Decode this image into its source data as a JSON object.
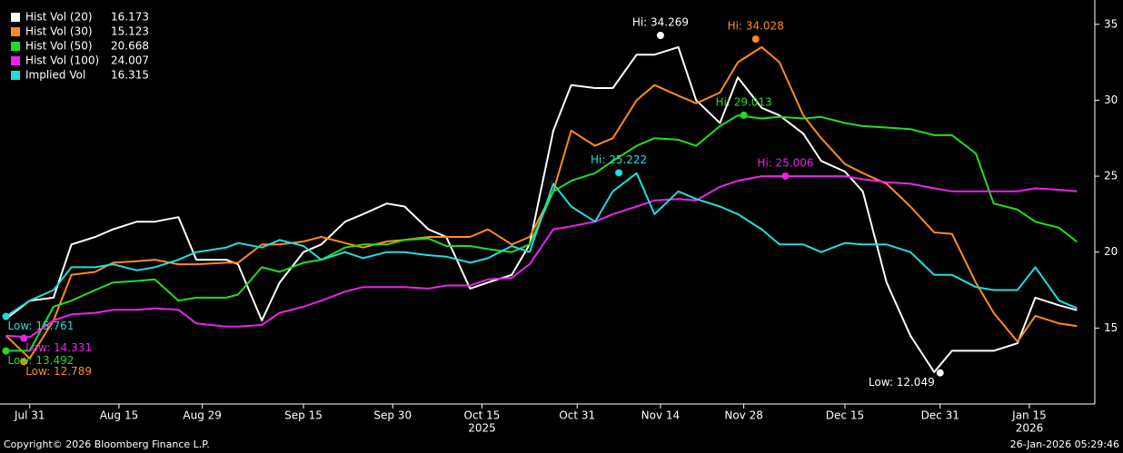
{
  "chart_data": {
    "type": "line",
    "xlim": [
      "2025-07-26",
      "2026-01-26"
    ],
    "ylim": [
      10,
      36.6
    ],
    "yticks": [
      15,
      20,
      25,
      30,
      35
    ],
    "xticks": [
      {
        "value": "2025-07-31",
        "label": "Jul 31"
      },
      {
        "value": "2025-08-15",
        "label": "Aug 15"
      },
      {
        "value": "2025-08-29",
        "label": "Aug 29"
      },
      {
        "value": "2025-09-15",
        "label": "Sep 15"
      },
      {
        "value": "2025-09-30",
        "label": "Sep 30"
      },
      {
        "value": "2025-10-15",
        "label": "Oct 15"
      },
      {
        "value": "2025-10-31",
        "label": "Oct 31"
      },
      {
        "value": "2025-11-14",
        "label": "Nov 14"
      },
      {
        "value": "2025-11-28",
        "label": "Nov 28"
      },
      {
        "value": "2025-12-15",
        "label": "Dec 15"
      },
      {
        "value": "2025-12-31",
        "label": "Dec 31"
      },
      {
        "value": "2026-01-15",
        "label": "Jan 15"
      }
    ],
    "year_labels": [
      {
        "value": "2025-10-15",
        "label": "2025"
      },
      {
        "value": "2026-01-15",
        "label": "2026"
      }
    ],
    "x": [
      "2025-07-27",
      "2025-07-31",
      "2025-08-04",
      "2025-08-07",
      "2025-08-11",
      "2025-08-14",
      "2025-08-18",
      "2025-08-21",
      "2025-08-25",
      "2025-08-28",
      "2025-09-02",
      "2025-09-04",
      "2025-09-08",
      "2025-09-11",
      "2025-09-15",
      "2025-09-18",
      "2025-09-22",
      "2025-09-25",
      "2025-09-29",
      "2025-10-02",
      "2025-10-06",
      "2025-10-09",
      "2025-10-13",
      "2025-10-16",
      "2025-10-20",
      "2025-10-23",
      "2025-10-27",
      "2025-10-30",
      "2025-11-03",
      "2025-11-06",
      "2025-11-10",
      "2025-11-13",
      "2025-11-17",
      "2025-11-20",
      "2025-11-24",
      "2025-11-27",
      "2025-12-01",
      "2025-12-04",
      "2025-12-08",
      "2025-12-11",
      "2025-12-15",
      "2025-12-18",
      "2025-12-22",
      "2025-12-26",
      "2025-12-30",
      "2026-01-02",
      "2026-01-06",
      "2026-01-09",
      "2026-01-13",
      "2026-01-16",
      "2026-01-20",
      "2026-01-23"
    ],
    "series": [
      {
        "name": "Hist Vol (20)",
        "color": "#ffffff",
        "last_value": 16.173,
        "values": [
          15.6,
          16.8,
          17,
          20.5,
          21,
          21.5,
          22,
          22,
          22.3,
          19.5,
          19.5,
          19.2,
          15.5,
          18,
          20,
          20.5,
          22,
          22.5,
          23.2,
          23,
          21.5,
          21,
          17.6,
          18,
          18.5,
          20.5,
          28,
          31,
          30.8,
          30.8,
          33,
          33,
          33.5,
          30,
          28.5,
          31.5,
          29.5,
          29,
          27.8,
          26,
          25.3,
          24,
          18,
          14.5,
          12.1,
          13.5,
          13.5,
          13.5,
          14,
          17,
          16.5,
          16.173
        ]
      },
      {
        "name": "Hist Vol (30)",
        "color": "#ff8c1a",
        "last_value": 15.123,
        "values": [
          14.5,
          13,
          15.5,
          18.5,
          18.7,
          19.3,
          19.4,
          19.5,
          19.2,
          19.2,
          19.3,
          19.3,
          20.5,
          20.5,
          20.7,
          21,
          20.6,
          20.3,
          20.7,
          20.8,
          21,
          21,
          21,
          21.5,
          20.5,
          21,
          24,
          28,
          27,
          27.5,
          30,
          31,
          30.3,
          29.8,
          30.5,
          32.5,
          33.5,
          32.5,
          29,
          27.5,
          25.8,
          25.2,
          24.5,
          23,
          21.3,
          21.2,
          18,
          16,
          14.1,
          15.8,
          15.3,
          15.123
        ]
      },
      {
        "name": "Hist Vol (50)",
        "color": "#22dd22",
        "last_value": 20.668,
        "values": [
          13.5,
          13.5,
          16.4,
          16.8,
          17.5,
          18,
          18.1,
          18.2,
          16.8,
          17,
          17,
          17.2,
          19,
          18.7,
          19.3,
          19.5,
          20.3,
          20.5,
          20.5,
          20.8,
          20.9,
          20.4,
          20.4,
          20.2,
          20,
          20.5,
          24,
          24.7,
          25.2,
          26,
          27,
          27.5,
          27.4,
          27,
          28.3,
          29,
          28.8,
          28.9,
          28.8,
          28.9,
          28.5,
          28.3,
          28.2,
          28.1,
          27.7,
          27.7,
          26.5,
          23.2,
          22.8,
          22,
          21.6,
          20.668
        ]
      },
      {
        "name": "Hist Vol (100)",
        "color": "#ee22ee",
        "last_value": 24.007,
        "values": [
          14.5,
          14.4,
          15.5,
          15.9,
          16,
          16.2,
          16.2,
          16.3,
          16.2,
          15.3,
          15.1,
          15.1,
          15.2,
          16,
          16.4,
          16.8,
          17.4,
          17.7,
          17.7,
          17.7,
          17.6,
          17.8,
          17.8,
          18.2,
          18.3,
          19.2,
          21.5,
          21.7,
          22,
          22.5,
          23,
          23.4,
          23.5,
          23.4,
          24.3,
          24.7,
          25,
          25,
          25,
          25,
          25,
          24.8,
          24.6,
          24.5,
          24.2,
          24,
          24,
          24,
          24,
          24.2,
          24.1,
          24.007
        ]
      },
      {
        "name": "Implied Vol",
        "color": "#22dddd",
        "last_value": 16.315,
        "values": [
          15.761,
          16.8,
          17.5,
          19,
          19,
          19.2,
          18.8,
          19,
          19.5,
          20,
          20.3,
          20.6,
          20.3,
          20.8,
          20.4,
          19.5,
          20,
          19.6,
          20,
          20,
          19.8,
          19.7,
          19.3,
          19.6,
          20.4,
          20,
          24.5,
          23,
          22,
          24,
          25.2,
          22.5,
          24,
          23.5,
          23,
          22.5,
          21.5,
          20.5,
          20.5,
          20,
          20.6,
          20.5,
          20.5,
          20,
          18.5,
          18.5,
          17.7,
          17.5,
          17.5,
          19,
          16.8,
          16.315
        ]
      }
    ],
    "annotations": [
      {
        "label": "Hi: 34.269",
        "x": "2025-11-14",
        "y": 34.269,
        "series": 0
      },
      {
        "label": "Low: 12.049",
        "x": "2025-12-31",
        "y": 12.049,
        "series": 0
      },
      {
        "label": "Hi: 34.028",
        "x": "2025-11-30",
        "y": 34.028,
        "series": 1
      },
      {
        "label": "Low: 12.789",
        "x": "2025-07-30",
        "y": 12.789,
        "series": 1
      },
      {
        "label": "Hi: 29.013",
        "x": "2025-11-28",
        "y": 29.013,
        "series": 2
      },
      {
        "label": "Low: 13.492",
        "x": "2025-07-27",
        "y": 13.492,
        "series": 2
      },
      {
        "label": "Hi: 25.006",
        "x": "2025-12-05",
        "y": 25.006,
        "series": 3
      },
      {
        "label": "Low: 14.331",
        "x": "2025-07-30",
        "y": 14.331,
        "series": 3
      },
      {
        "label": "Hi: 25.222",
        "x": "2025-11-07",
        "y": 25.222,
        "series": 4
      },
      {
        "label": "Low: 15.761",
        "x": "2025-07-27",
        "y": 15.761,
        "series": 4
      }
    ]
  },
  "footer": {
    "copyright": "Copyright© 2026 Bloomberg Finance L.P.",
    "timestamp": "26-Jan-2026 05:29:46"
  }
}
